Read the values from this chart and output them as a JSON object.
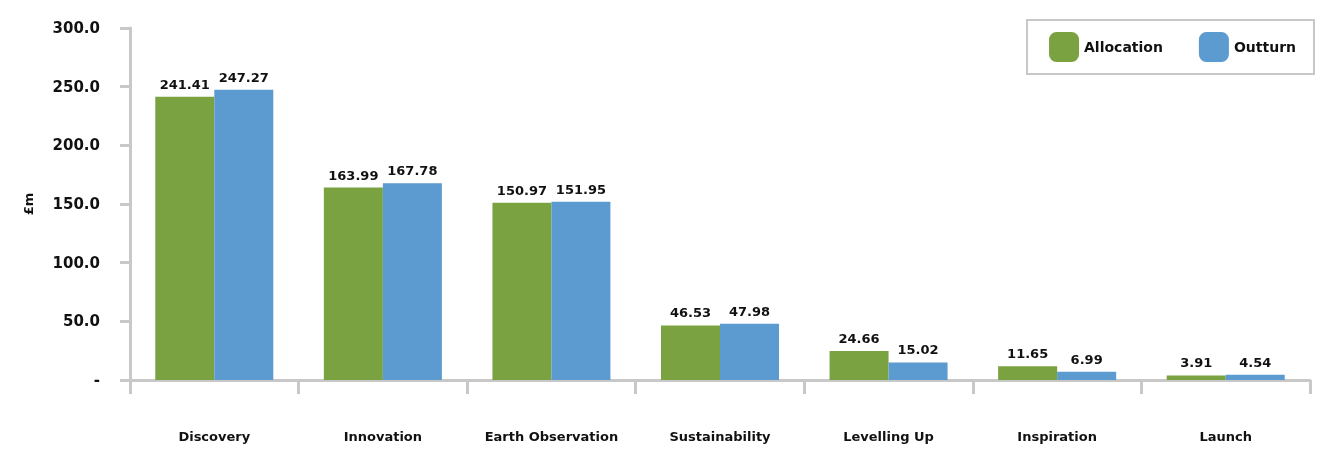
{
  "chart_data": {
    "type": "bar",
    "ylabel": "£m",
    "categories": [
      "Discovery",
      "Innovation",
      "Earth Observation",
      "Sustainability",
      "Levelling Up",
      "Inspiration",
      "Launch"
    ],
    "series": [
      {
        "name": "Allocation",
        "color": "#7ba241",
        "values": [
          241.41,
          163.99,
          150.97,
          46.53,
          24.66,
          11.65,
          3.91
        ]
      },
      {
        "name": "Outturn",
        "color": "#5b9bd0",
        "values": [
          247.27,
          167.78,
          151.95,
          47.98,
          15.02,
          6.99,
          4.54
        ]
      }
    ],
    "ylim": [
      0,
      300
    ],
    "yticks": [
      {
        "value": 0,
        "label": "-"
      },
      {
        "value": 50,
        "label": "50.0"
      },
      {
        "value": 100,
        "label": "100.0"
      },
      {
        "value": 150,
        "label": "150.0"
      },
      {
        "value": 200,
        "label": "200.0"
      },
      {
        "value": 250,
        "label": "250.0"
      },
      {
        "value": 300,
        "label": "300.0"
      }
    ],
    "data_labels": true,
    "legend": "top right",
    "grid": false
  }
}
